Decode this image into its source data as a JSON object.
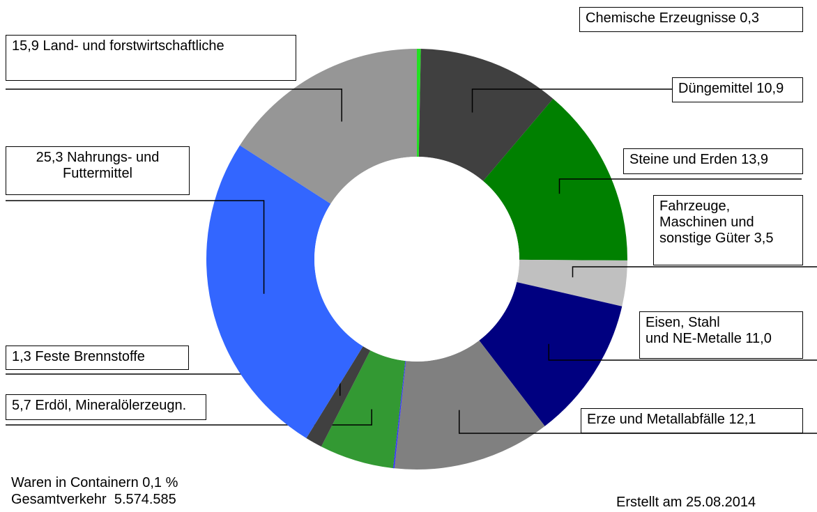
{
  "chart_data": {
    "type": "donut",
    "categories": [
      "Chemische Erzeugnisse",
      "Düngemittel",
      "Steine und Erden",
      "Fahrzeuge,\nMaschinen und\nsonstige Güter",
      "Eisen, Stahl\nund NE-Metalle",
      "Erze und Metallabfälle",
      "Waren in Containern",
      "Erdöl, Mineralölerzeugn.",
      "Feste Brennstoffe",
      "Nahrungs- und\nFuttermittel",
      "Land- und forstwirtschaftliche"
    ],
    "values": [
      0.3,
      10.9,
      13.9,
      3.5,
      11.0,
      12.1,
      0.1,
      5.7,
      1.3,
      25.3,
      15.9
    ],
    "value_labels": [
      "0,3",
      "10,9",
      "13,9",
      "3,5",
      "11,0",
      "12,1",
      "0,1 %",
      "5,7",
      "1,3",
      "25,3",
      "15,9"
    ],
    "colors": [
      "#22e022",
      "#404040",
      "#008000",
      "#c0c0c0",
      "#000080",
      "#808080",
      "#3333ff",
      "#339933",
      "#404040",
      "#3366ff",
      "#969696"
    ],
    "note": "Gesamtverkehr  5.574.585",
    "created": "Erstellt am 25.08.2014"
  }
}
